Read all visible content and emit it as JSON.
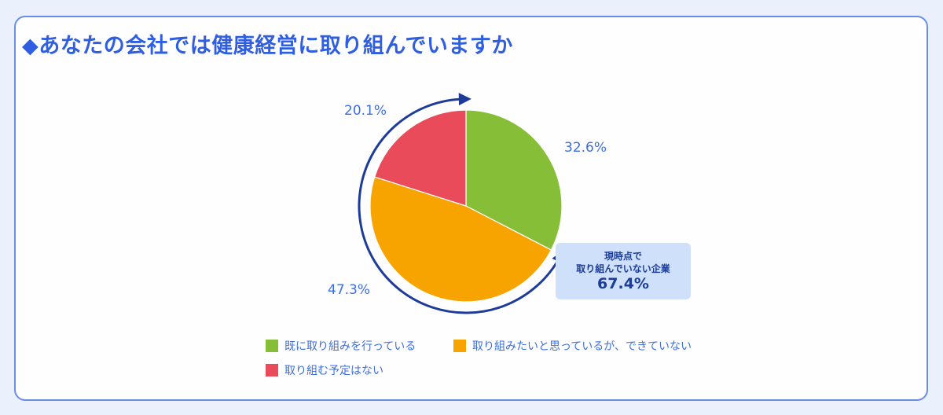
{
  "title": "◆あなたの会社では健康経営に取り組んでいますか",
  "colors": {
    "accent": "#2f5fe0",
    "green": "#86bf37",
    "orange": "#f7a300",
    "red": "#e94b5b",
    "arrow": "#1d3b99",
    "callout_bg": "#cfe0fb"
  },
  "labels": {
    "green_pct": "32.6%",
    "orange_pct": "47.3%",
    "red_pct": "20.1%"
  },
  "callout": {
    "line1": "現時点で",
    "line2": "取り組んでいない企業",
    "value": "67.4%"
  },
  "legend": [
    {
      "label": "既に取り組みを行っている",
      "color": "#86bf37"
    },
    {
      "label": "取り組みたいと思っているが、できていない",
      "color": "#f7a300"
    },
    {
      "label": "取り組む予定はない",
      "color": "#e94b5b"
    }
  ],
  "chart_data": {
    "type": "pie",
    "title": "あなたの会社では健康経営に取り組んでいますか",
    "categories": [
      "既に取り組みを行っている",
      "取り組みたいと思っているが、できていない",
      "取り組む予定はない"
    ],
    "values": [
      32.6,
      47.3,
      20.1
    ],
    "colors": [
      "#86bf37",
      "#f7a300",
      "#e94b5b"
    ],
    "start_angle": "12 o'clock, clockwise",
    "annotations": [
      {
        "text": "現時点で取り組んでいない企業 67.4%",
        "covers": [
          "取り組みたいと思っているが、できていない",
          "取り組む予定はない"
        ]
      }
    ],
    "legend_position": "bottom"
  }
}
